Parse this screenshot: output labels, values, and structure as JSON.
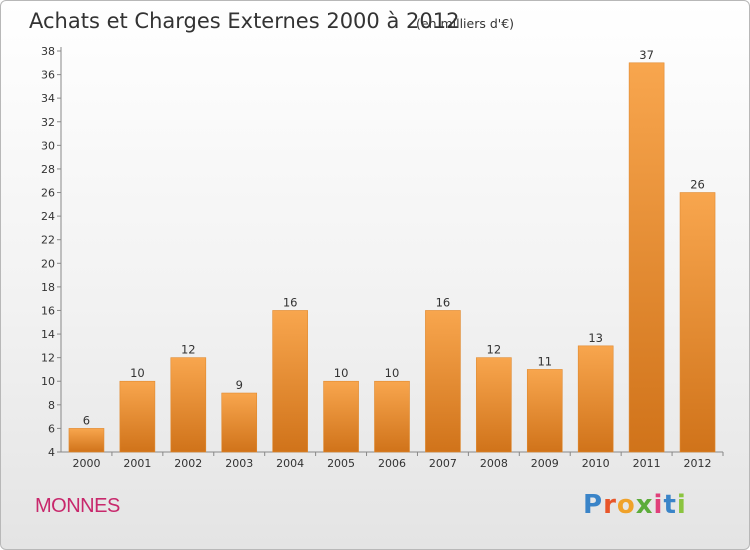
{
  "colors": {
    "bar_light": "#f8a64e",
    "bar_dark": "#d0731a",
    "bar_edge": "#e08a30",
    "commune": "#c8286c",
    "text": "#333333",
    "axis": "#888888",
    "grid": "#dddddd"
  },
  "commune": {
    "name": "MONNES"
  },
  "logo": {
    "letters": [
      {
        "char": "P",
        "color": "#3a84c8"
      },
      {
        "char": "r",
        "color": "#e8562a"
      },
      {
        "char": "o",
        "color": "#f0a22a"
      },
      {
        "char": "x",
        "color": "#5cac3a"
      },
      {
        "char": "i",
        "color": "#e03f7a"
      },
      {
        "char": "t",
        "color": "#3a84c8"
      },
      {
        "char": "i",
        "color": "#8bc43f"
      }
    ]
  },
  "chart_data": {
    "type": "bar",
    "title": "Achats et Charges Externes 2000 à 2012",
    "subtitle": "(en milliers d'€)",
    "xlabel": "",
    "ylabel": "",
    "categories": [
      "2000",
      "2001",
      "2002",
      "2003",
      "2004",
      "2005",
      "2006",
      "2007",
      "2008",
      "2009",
      "2010",
      "2011",
      "2012"
    ],
    "values": [
      6,
      10,
      12,
      9,
      16,
      10,
      10,
      16,
      12,
      11,
      13,
      37,
      26
    ],
    "ylim": [
      4,
      38
    ],
    "yticks": [
      4,
      6,
      8,
      10,
      12,
      14,
      16,
      18,
      20,
      22,
      24,
      26,
      28,
      30,
      32,
      34,
      36,
      38
    ],
    "data_labels": true,
    "grid": false,
    "legend": "none"
  }
}
